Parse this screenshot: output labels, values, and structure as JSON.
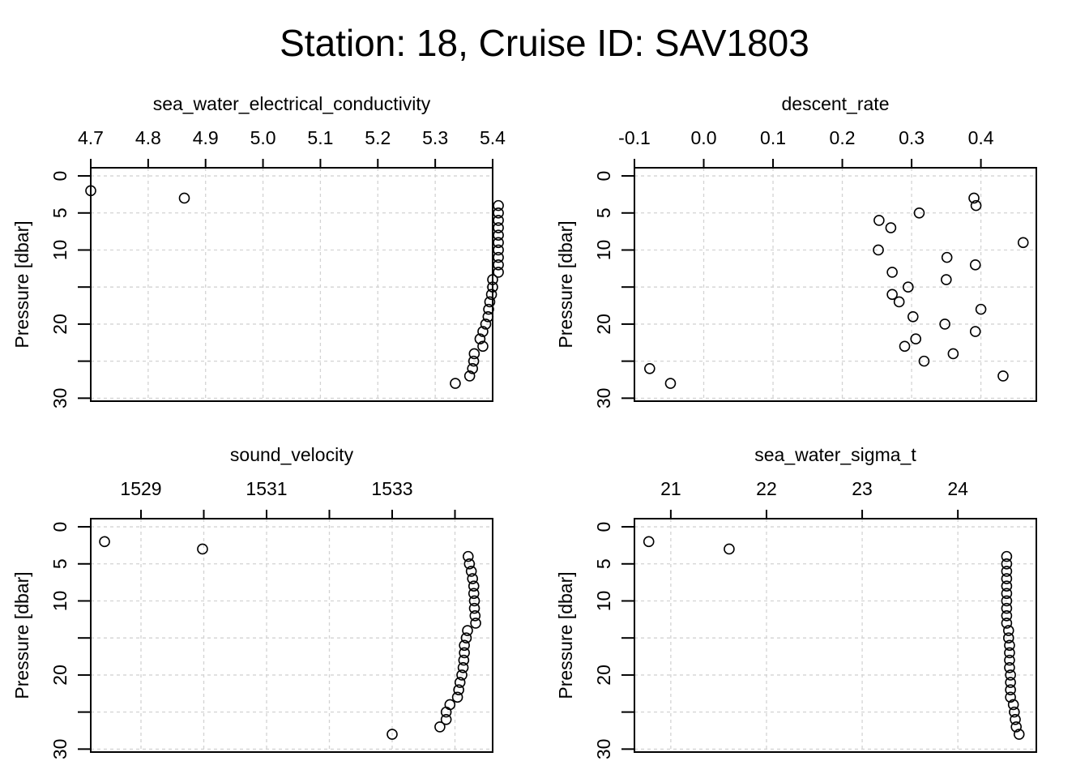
{
  "title": "Station: 18, Cruise ID: SAV1803",
  "chart_data": [
    {
      "type": "scatter",
      "title": "sea_water_electrical_conductivity",
      "ylabel": "Pressure [dbar]",
      "y_reversed": true,
      "x_axis_position": "top",
      "xlim": [
        4.7,
        5.4
      ],
      "ylim": [
        0,
        30
      ],
      "xticks": [
        4.7,
        4.8,
        4.9,
        5.0,
        5.1,
        5.2,
        5.3,
        5.4
      ],
      "xtick_labels": [
        "4.7",
        "4.8",
        "4.9",
        "5.0",
        "5.1",
        "5.2",
        "5.3",
        "5.4"
      ],
      "yticks": [
        0,
        5,
        10,
        20,
        30
      ],
      "ytick_labels": [
        "0",
        "5",
        "10",
        "20",
        "30"
      ],
      "grid": true,
      "points": [
        {
          "x": 4.7,
          "y": 2
        },
        {
          "x": 4.863,
          "y": 3
        },
        {
          "x": 5.41,
          "y": 4
        },
        {
          "x": 5.41,
          "y": 5
        },
        {
          "x": 5.41,
          "y": 6
        },
        {
          "x": 5.41,
          "y": 7
        },
        {
          "x": 5.41,
          "y": 8
        },
        {
          "x": 5.41,
          "y": 9
        },
        {
          "x": 5.41,
          "y": 10
        },
        {
          "x": 5.41,
          "y": 11
        },
        {
          "x": 5.41,
          "y": 12
        },
        {
          "x": 5.41,
          "y": 13
        },
        {
          "x": 5.4,
          "y": 14
        },
        {
          "x": 5.4,
          "y": 15
        },
        {
          "x": 5.398,
          "y": 16
        },
        {
          "x": 5.395,
          "y": 17
        },
        {
          "x": 5.393,
          "y": 18
        },
        {
          "x": 5.392,
          "y": 19
        },
        {
          "x": 5.388,
          "y": 20
        },
        {
          "x": 5.383,
          "y": 21
        },
        {
          "x": 5.378,
          "y": 22
        },
        {
          "x": 5.383,
          "y": 23
        },
        {
          "x": 5.368,
          "y": 24
        },
        {
          "x": 5.367,
          "y": 25
        },
        {
          "x": 5.365,
          "y": 26
        },
        {
          "x": 5.36,
          "y": 27
        },
        {
          "x": 5.335,
          "y": 28
        }
      ]
    },
    {
      "type": "scatter",
      "title": "descent_rate",
      "ylabel": "Pressure [dbar]",
      "y_reversed": true,
      "x_axis_position": "top",
      "xlim": [
        -0.1,
        0.48
      ],
      "ylim": [
        0,
        30
      ],
      "xticks": [
        -0.1,
        0.0,
        0.1,
        0.2,
        0.3,
        0.4
      ],
      "xtick_labels": [
        "-0.1",
        "0.0",
        "0.1",
        "0.2",
        "0.3",
        "0.4"
      ],
      "yticks": [
        0,
        5,
        10,
        20,
        30
      ],
      "ytick_labels": [
        "0",
        "5",
        "10",
        "20",
        "30"
      ],
      "grid": true,
      "points": [
        {
          "x": 0.39,
          "y": 3
        },
        {
          "x": 0.393,
          "y": 4
        },
        {
          "x": 0.311,
          "y": 5
        },
        {
          "x": 0.253,
          "y": 6
        },
        {
          "x": 0.27,
          "y": 7
        },
        {
          "x": 0.461,
          "y": 9
        },
        {
          "x": 0.252,
          "y": 10
        },
        {
          "x": 0.351,
          "y": 11
        },
        {
          "x": 0.392,
          "y": 12
        },
        {
          "x": 0.272,
          "y": 13
        },
        {
          "x": 0.35,
          "y": 14
        },
        {
          "x": 0.295,
          "y": 15
        },
        {
          "x": 0.272,
          "y": 16
        },
        {
          "x": 0.282,
          "y": 17
        },
        {
          "x": 0.4,
          "y": 18
        },
        {
          "x": 0.302,
          "y": 19
        },
        {
          "x": 0.348,
          "y": 20
        },
        {
          "x": 0.392,
          "y": 21
        },
        {
          "x": 0.306,
          "y": 22
        },
        {
          "x": 0.29,
          "y": 23
        },
        {
          "x": 0.36,
          "y": 24
        },
        {
          "x": 0.318,
          "y": 25
        },
        {
          "x": -0.078,
          "y": 26
        },
        {
          "x": 0.432,
          "y": 27
        },
        {
          "x": -0.048,
          "y": 28
        }
      ]
    },
    {
      "type": "scatter",
      "title": "sound_velocity",
      "ylabel": "Pressure [dbar]",
      "y_reversed": true,
      "x_axis_position": "top",
      "xlim": [
        1528.2,
        1534.6
      ],
      "ylim": [
        0,
        30
      ],
      "xticks": [
        1529,
        1530,
        1531,
        1532,
        1533,
        1534
      ],
      "xtick_labels": [
        "1529",
        "",
        "1531",
        "",
        "1533",
        ""
      ],
      "yticks": [
        0,
        5,
        10,
        20,
        30
      ],
      "ytick_labels": [
        "0",
        "5",
        "10",
        "20",
        "30"
      ],
      "grid": true,
      "points": [
        {
          "x": 1528.42,
          "y": 2
        },
        {
          "x": 1529.98,
          "y": 3
        },
        {
          "x": 1534.21,
          "y": 4
        },
        {
          "x": 1534.23,
          "y": 5
        },
        {
          "x": 1534.26,
          "y": 6
        },
        {
          "x": 1534.28,
          "y": 7
        },
        {
          "x": 1534.3,
          "y": 8
        },
        {
          "x": 1534.3,
          "y": 9
        },
        {
          "x": 1534.31,
          "y": 10
        },
        {
          "x": 1534.31,
          "y": 11
        },
        {
          "x": 1534.32,
          "y": 12
        },
        {
          "x": 1534.33,
          "y": 13
        },
        {
          "x": 1534.2,
          "y": 14
        },
        {
          "x": 1534.18,
          "y": 15
        },
        {
          "x": 1534.15,
          "y": 16
        },
        {
          "x": 1534.15,
          "y": 17
        },
        {
          "x": 1534.14,
          "y": 18
        },
        {
          "x": 1534.13,
          "y": 19
        },
        {
          "x": 1534.11,
          "y": 20
        },
        {
          "x": 1534.08,
          "y": 21
        },
        {
          "x": 1534.06,
          "y": 22
        },
        {
          "x": 1534.04,
          "y": 23
        },
        {
          "x": 1533.92,
          "y": 24
        },
        {
          "x": 1533.86,
          "y": 25
        },
        {
          "x": 1533.86,
          "y": 26
        },
        {
          "x": 1533.76,
          "y": 27
        },
        {
          "x": 1533.0,
          "y": 28
        }
      ]
    },
    {
      "type": "scatter",
      "title": "sea_water_sigma_t",
      "ylabel": "Pressure [dbar]",
      "y_reversed": true,
      "x_axis_position": "top",
      "xlim": [
        20.62,
        24.82
      ],
      "ylim": [
        0,
        30
      ],
      "xticks": [
        21,
        22,
        23,
        24
      ],
      "xtick_labels": [
        "21",
        "22",
        "23",
        "24"
      ],
      "yticks": [
        0,
        5,
        10,
        20,
        30
      ],
      "ytick_labels": [
        "0",
        "5",
        "10",
        "20",
        "30"
      ],
      "grid": true,
      "points": [
        {
          "x": 20.77,
          "y": 2
        },
        {
          "x": 21.61,
          "y": 3
        },
        {
          "x": 24.51,
          "y": 4
        },
        {
          "x": 24.51,
          "y": 5
        },
        {
          "x": 24.51,
          "y": 6
        },
        {
          "x": 24.51,
          "y": 7
        },
        {
          "x": 24.51,
          "y": 8
        },
        {
          "x": 24.51,
          "y": 9
        },
        {
          "x": 24.51,
          "y": 10
        },
        {
          "x": 24.51,
          "y": 11
        },
        {
          "x": 24.51,
          "y": 12
        },
        {
          "x": 24.51,
          "y": 13
        },
        {
          "x": 24.53,
          "y": 14
        },
        {
          "x": 24.53,
          "y": 15
        },
        {
          "x": 24.54,
          "y": 16
        },
        {
          "x": 24.54,
          "y": 17
        },
        {
          "x": 24.54,
          "y": 18
        },
        {
          "x": 24.54,
          "y": 19
        },
        {
          "x": 24.55,
          "y": 20
        },
        {
          "x": 24.55,
          "y": 21
        },
        {
          "x": 24.55,
          "y": 22
        },
        {
          "x": 24.55,
          "y": 23
        },
        {
          "x": 24.58,
          "y": 24
        },
        {
          "x": 24.59,
          "y": 25
        },
        {
          "x": 24.6,
          "y": 26
        },
        {
          "x": 24.61,
          "y": 27
        },
        {
          "x": 24.64,
          "y": 28
        }
      ]
    }
  ]
}
